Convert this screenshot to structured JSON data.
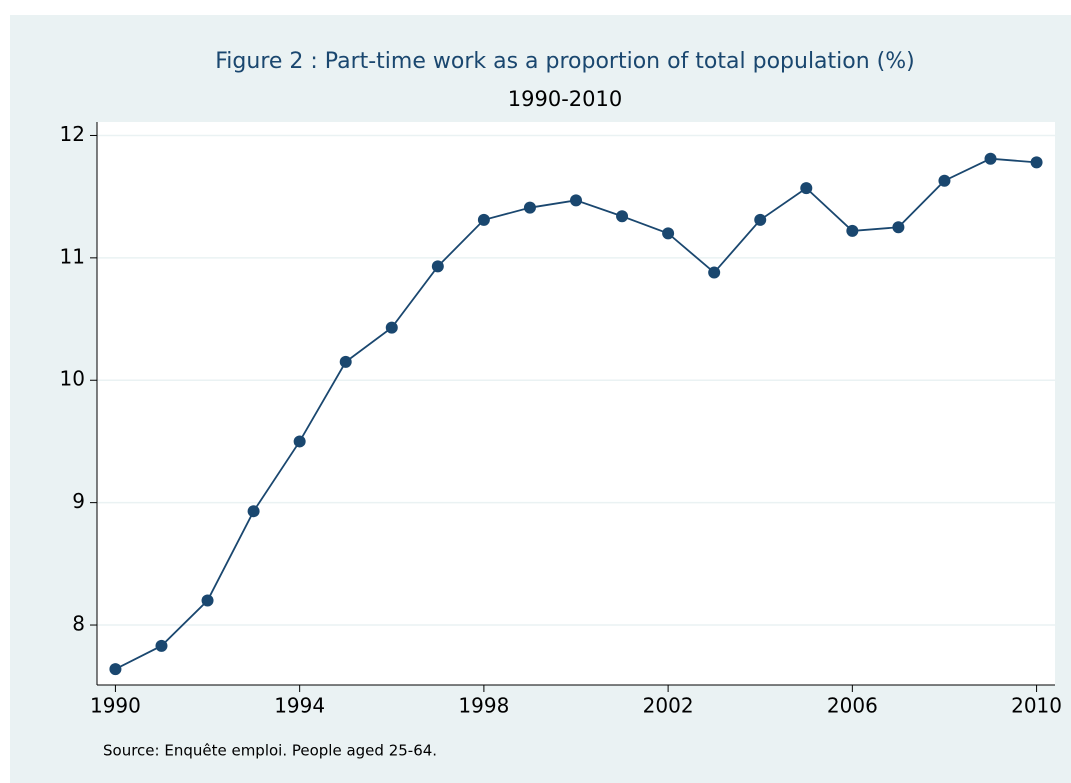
{
  "chart_data": {
    "type": "line",
    "title": "Figure 2 : Part-time work as a proportion of total population (%)",
    "subtitle": "1990-2010",
    "note": "Source: Enquête emploi. People aged 25-64.",
    "x": [
      1990,
      1991,
      1992,
      1993,
      1994,
      1995,
      1996,
      1997,
      1998,
      1999,
      2000,
      2001,
      2002,
      2003,
      2004,
      2005,
      2006,
      2007,
      2008,
      2009,
      2010
    ],
    "series": [
      {
        "name": "Part-time work",
        "color": "#1a476f",
        "values": [
          7.64,
          7.83,
          8.2,
          8.93,
          9.5,
          10.15,
          10.43,
          10.93,
          11.31,
          11.41,
          11.47,
          11.34,
          11.2,
          10.88,
          11.31,
          11.57,
          11.22,
          11.25,
          11.63,
          11.81,
          11.78
        ]
      }
    ],
    "xlim": [
      1989.6,
      2010.4
    ],
    "xticks": [
      1990,
      1994,
      1998,
      2002,
      2006,
      2010
    ],
    "ylim": [
      7.51,
      12.11
    ],
    "yticks": [
      8,
      9,
      10,
      11,
      12
    ],
    "grid": true
  }
}
